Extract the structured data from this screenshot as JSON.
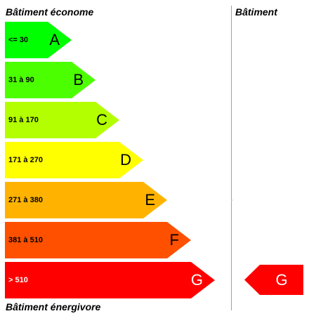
{
  "header_top": "Bâtiment économe",
  "header_right": "Bâtiment",
  "header_bottom": "Bâtiment énergivore",
  "classes": [
    {
      "letter": "A",
      "range": "<= 30",
      "color": "#00ff00"
    },
    {
      "letter": "B",
      "range": "31 à 90",
      "color": "#4cff00"
    },
    {
      "letter": "C",
      "range": "91 à 170",
      "color": "#b3ff00"
    },
    {
      "letter": "D",
      "range": "171 à 270",
      "color": "#ffff00"
    },
    {
      "letter": "E",
      "range": "271 à 380",
      "color": "#ffb300"
    },
    {
      "letter": "F",
      "range": "381 à 510",
      "color": "#ff5000"
    },
    {
      "letter": "G",
      "range": "> 510",
      "color": "#ff0000"
    }
  ],
  "building": {
    "letter": "G",
    "color": "#ff0000"
  }
}
